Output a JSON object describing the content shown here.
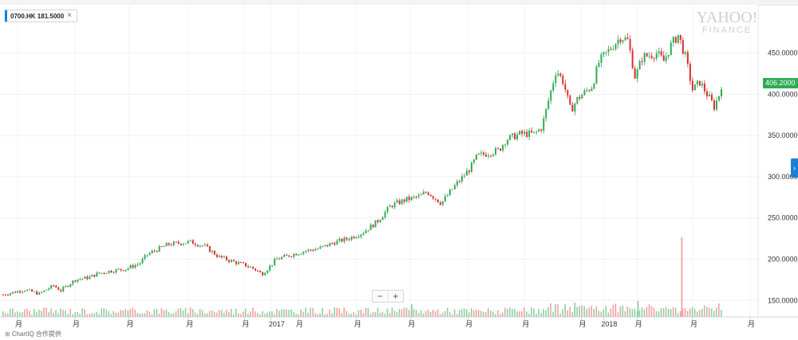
{
  "symbol": {
    "label": "0700.HK 181.5000",
    "close_glyph": "×"
  },
  "logo": {
    "line1": "YAHOO!",
    "line2": "FINANCE"
  },
  "price_badge": "406.2000",
  "zoom": {
    "minus": "−",
    "plus": "+"
  },
  "side_tab_glyph": "›",
  "credit": {
    "icon": "⊞",
    "text": "ChartIQ 合作提供"
  },
  "colors": {
    "up": "#2eab55",
    "down": "#d8302c",
    "volume_up": "#8fd0a4",
    "volume_down": "#f0a3a0",
    "accent": "#1c7fd6"
  },
  "chart_data": {
    "type": "candlestick",
    "symbol": "0700.HK",
    "y_axis": {
      "ticks": [
        150,
        200,
        250,
        300,
        350,
        400,
        450
      ],
      "tick_labels": [
        "150.0000",
        "200.0000",
        "250.0000",
        "300.0000",
        "350.0000",
        "400.0000",
        "450.0000"
      ],
      "range": [
        130,
        495
      ]
    },
    "x_axis": {
      "labels": [
        "月",
        "月",
        "月",
        "月",
        "月",
        "2017",
        "月",
        "月",
        "月",
        "月",
        "月",
        "月",
        "2018",
        "月",
        "月",
        "月"
      ],
      "domain": [
        0,
        100
      ],
      "positions": [
        2.0,
        10.0,
        17.5,
        25.8,
        33.6,
        37.3,
        41.1,
        49.2,
        56.7,
        64.7,
        72.6,
        80.5,
        83.6,
        88.3,
        96.0,
        104.0
      ]
    },
    "price_path": [
      [
        0,
        157
      ],
      [
        3,
        163
      ],
      [
        5,
        158
      ],
      [
        7,
        168
      ],
      [
        8,
        162
      ],
      [
        10,
        175
      ],
      [
        12,
        178
      ],
      [
        13,
        182
      ],
      [
        15,
        186
      ],
      [
        17,
        188
      ],
      [
        19,
        195
      ],
      [
        20,
        205
      ],
      [
        21,
        210
      ],
      [
        23,
        218
      ],
      [
        25,
        220
      ],
      [
        26,
        221
      ],
      [
        28,
        216
      ],
      [
        30,
        203
      ],
      [
        32,
        197
      ],
      [
        34,
        192
      ],
      [
        35,
        188
      ],
      [
        36,
        182
      ],
      [
        37,
        190
      ],
      [
        38,
        200
      ],
      [
        40,
        205
      ],
      [
        42,
        210
      ],
      [
        44,
        213
      ],
      [
        46,
        220
      ],
      [
        48,
        225
      ],
      [
        50,
        232
      ],
      [
        52,
        245
      ],
      [
        54,
        265
      ],
      [
        56,
        272
      ],
      [
        58,
        276
      ],
      [
        59,
        282
      ],
      [
        60,
        275
      ],
      [
        61,
        268
      ],
      [
        63,
        290
      ],
      [
        65,
        310
      ],
      [
        66,
        325
      ],
      [
        68,
        330
      ],
      [
        69,
        332
      ],
      [
        70,
        345
      ],
      [
        72,
        352
      ],
      [
        74,
        352
      ],
      [
        75,
        360
      ],
      [
        76,
        395
      ],
      [
        77,
        430
      ],
      [
        78,
        415
      ],
      [
        79,
        380
      ],
      [
        80,
        395
      ],
      [
        82,
        410
      ],
      [
        83,
        440
      ],
      [
        85,
        460
      ],
      [
        86,
        470
      ],
      [
        87,
        465
      ],
      [
        88,
        420
      ],
      [
        89,
        445
      ],
      [
        91,
        450
      ],
      [
        92,
        440
      ],
      [
        93,
        460
      ],
      [
        94,
        472
      ],
      [
        95,
        445
      ],
      [
        96,
        405
      ],
      [
        97,
        415
      ],
      [
        98,
        400
      ],
      [
        99,
        385
      ],
      [
        100,
        406
      ]
    ],
    "volume_spikes": [
      {
        "x": 94.5,
        "relative": 1.0
      },
      {
        "x": 88.4,
        "relative": 0.2
      },
      {
        "x": 79.6,
        "relative": 0.18
      },
      {
        "x": 56.9,
        "relative": 0.16
      }
    ],
    "last_price": 406.2
  }
}
